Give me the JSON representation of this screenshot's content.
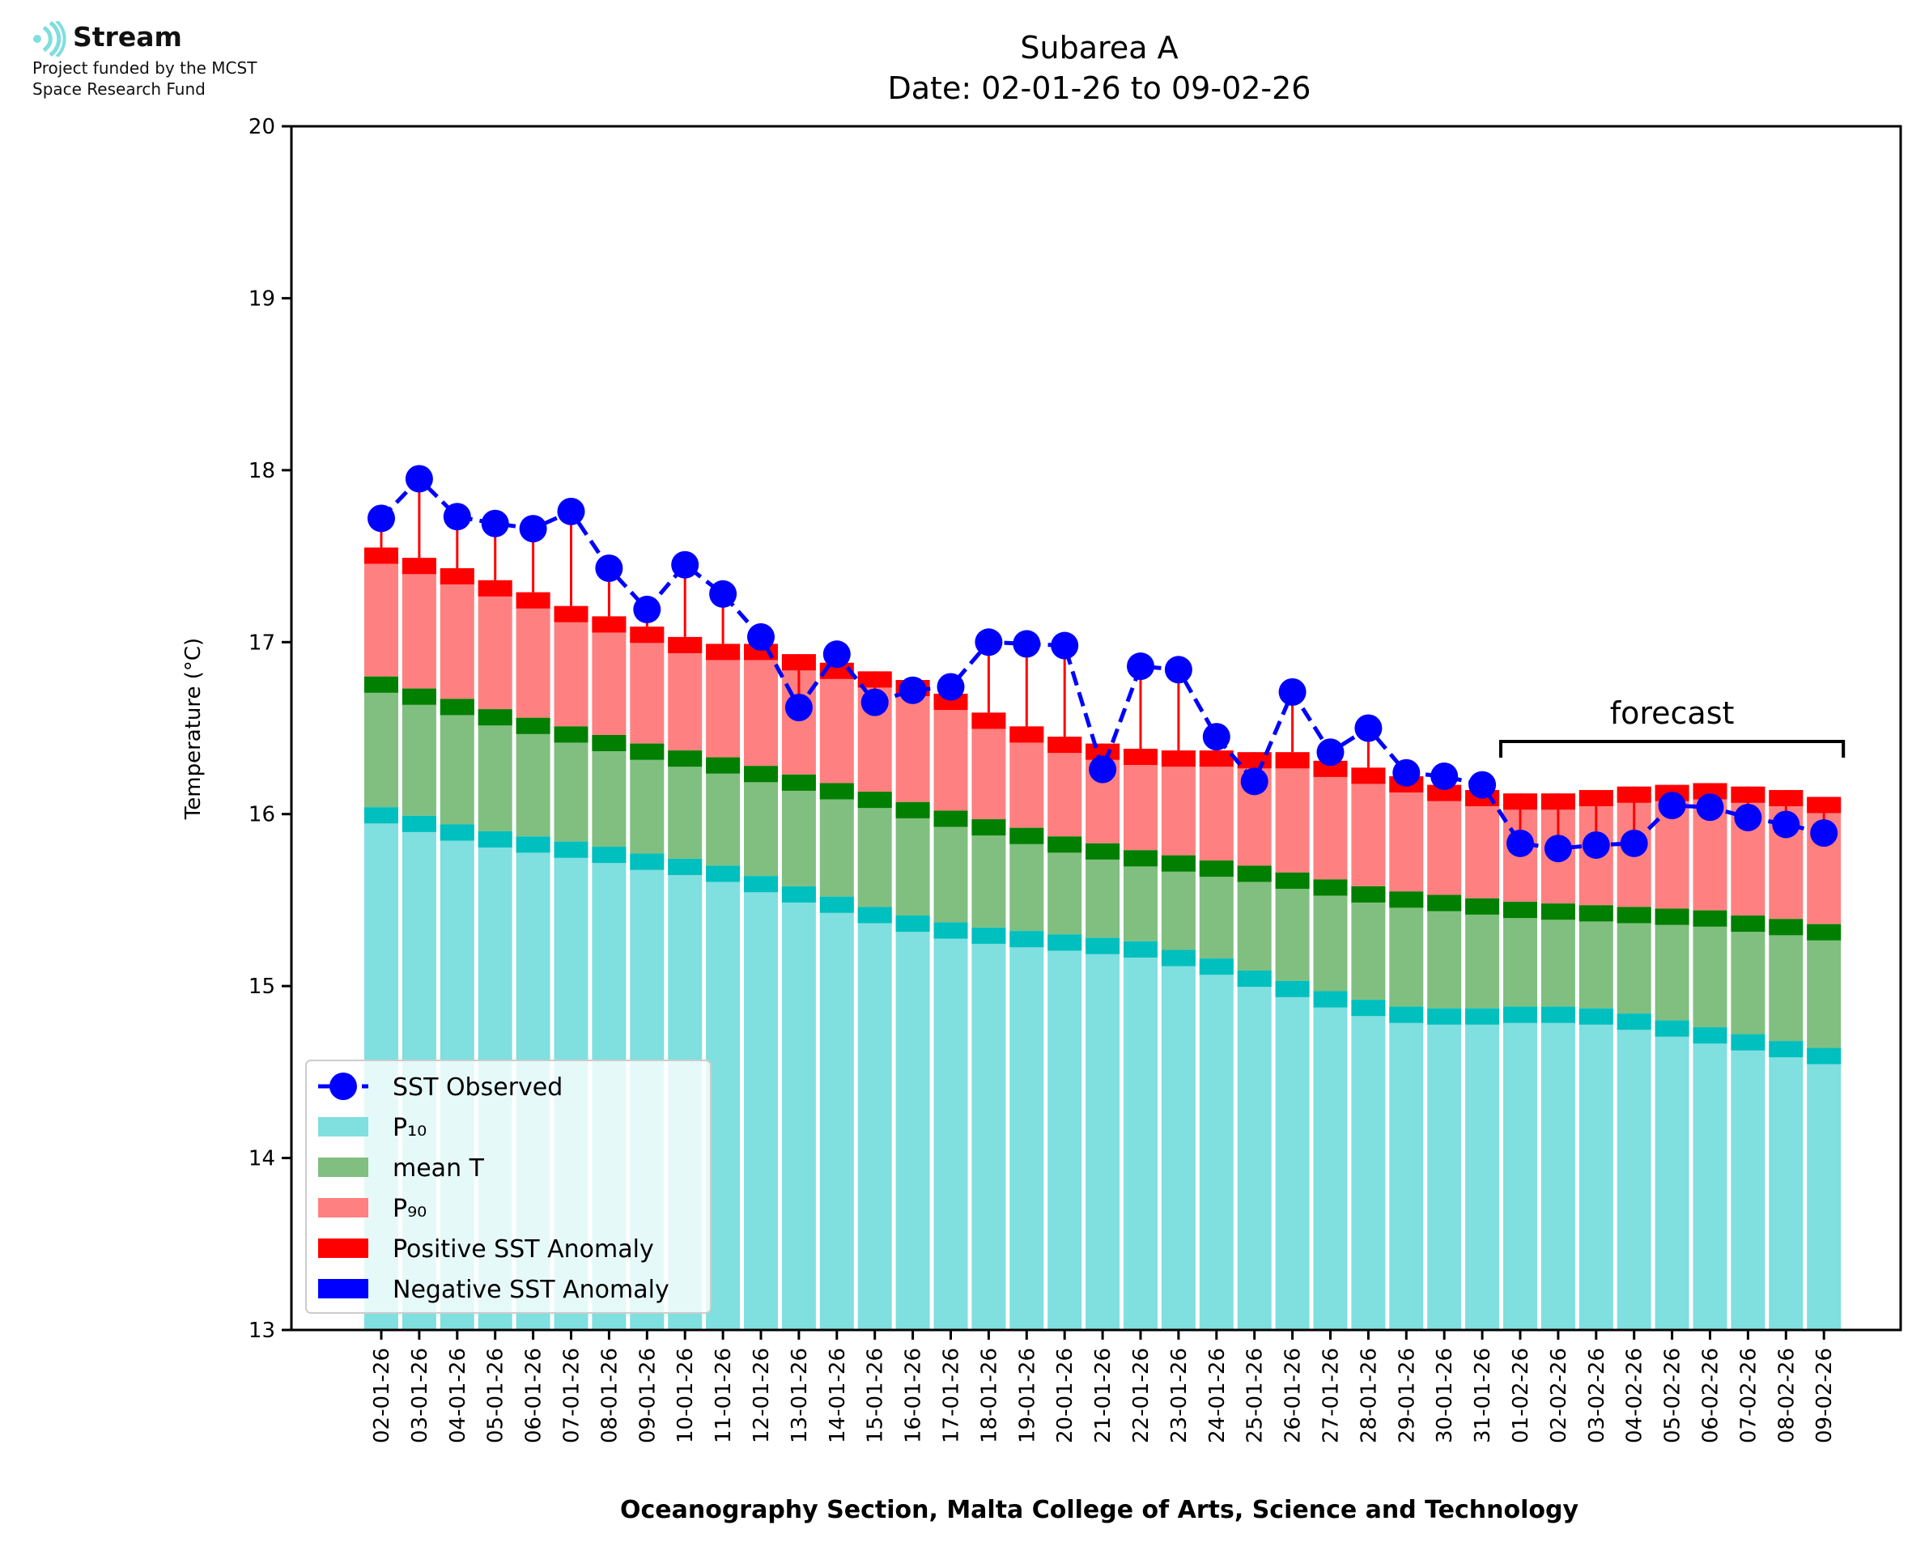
{
  "logo": {
    "icon": "stream-waves-icon",
    "name": "Stream",
    "line1": "Project funded by the MCST",
    "line2": "Space Research Fund",
    "color": "#7fdede"
  },
  "chart_data": {
    "type": "bar",
    "title": "Subarea A",
    "subtitle": "Date: 02-01-26 to 09-02-26",
    "ylabel": "Temperature (°C)",
    "xlabel": "Oceanography Section, Malta College of Arts, Science and Technology",
    "ylim": [
      13,
      20
    ],
    "yticks": [
      13,
      14,
      15,
      16,
      17,
      18,
      19,
      20
    ],
    "grid": false,
    "legend_position": "lower-left",
    "forecast_label": "forecast",
    "forecast_range": [
      "01-02-26",
      "09-02-26"
    ],
    "categories": [
      "02-01-26",
      "03-01-26",
      "04-01-26",
      "05-01-26",
      "06-01-26",
      "07-01-26",
      "08-01-26",
      "09-01-26",
      "10-01-26",
      "11-01-26",
      "12-01-26",
      "13-01-26",
      "14-01-26",
      "15-01-26",
      "16-01-26",
      "17-01-26",
      "18-01-26",
      "19-01-26",
      "20-01-26",
      "21-01-26",
      "22-01-26",
      "23-01-26",
      "24-01-26",
      "25-01-26",
      "26-01-26",
      "27-01-26",
      "28-01-26",
      "29-01-26",
      "30-01-26",
      "31-01-26",
      "01-02-26",
      "02-02-26",
      "03-02-26",
      "04-02-26",
      "05-02-26",
      "06-02-26",
      "07-02-26",
      "08-02-26",
      "09-02-26"
    ],
    "series": [
      {
        "name": "SST Observed",
        "color": "#0000ff",
        "values": [
          17.72,
          17.95,
          17.73,
          17.69,
          17.66,
          17.76,
          17.43,
          17.19,
          17.45,
          17.28,
          17.03,
          16.62,
          16.93,
          16.65,
          16.72,
          16.74,
          17.0,
          16.99,
          16.98,
          16.26,
          16.86,
          16.84,
          16.45,
          16.19,
          16.71,
          16.36,
          16.5,
          16.24,
          16.22,
          16.17,
          15.83,
          15.8,
          15.82,
          15.83,
          16.05,
          16.04,
          15.98,
          15.94,
          15.89
        ]
      },
      {
        "name": "P10",
        "color": "#80dfdf",
        "edge_color": "#00bfbf",
        "values": [
          16.04,
          15.99,
          15.94,
          15.9,
          15.87,
          15.84,
          15.81,
          15.77,
          15.74,
          15.7,
          15.64,
          15.58,
          15.52,
          15.46,
          15.41,
          15.37,
          15.34,
          15.32,
          15.3,
          15.28,
          15.26,
          15.21,
          15.16,
          15.09,
          15.03,
          14.97,
          14.92,
          14.88,
          14.87,
          14.87,
          14.88,
          14.88,
          14.87,
          14.84,
          14.8,
          14.76,
          14.72,
          14.68,
          14.64
        ]
      },
      {
        "name": "mean T",
        "color": "#80bf80",
        "edge_color": "#007f00",
        "values": [
          16.8,
          16.73,
          16.67,
          16.61,
          16.56,
          16.51,
          16.46,
          16.41,
          16.37,
          16.33,
          16.28,
          16.23,
          16.18,
          16.13,
          16.07,
          16.02,
          15.97,
          15.92,
          15.87,
          15.83,
          15.79,
          15.76,
          15.73,
          15.7,
          15.66,
          15.62,
          15.58,
          15.55,
          15.53,
          15.51,
          15.49,
          15.48,
          15.47,
          15.46,
          15.45,
          15.44,
          15.41,
          15.39,
          15.36
        ]
      },
      {
        "name": "P90",
        "color": "#ff8080",
        "edge_color": "#ff0000",
        "values": [
          17.55,
          17.49,
          17.43,
          17.36,
          17.29,
          17.21,
          17.15,
          17.09,
          17.03,
          16.99,
          16.99,
          16.93,
          16.88,
          16.83,
          16.78,
          16.7,
          16.59,
          16.51,
          16.45,
          16.41,
          16.38,
          16.37,
          16.37,
          16.36,
          16.36,
          16.31,
          16.27,
          16.22,
          16.17,
          16.14,
          16.12,
          16.12,
          16.14,
          16.16,
          16.17,
          16.18,
          16.16,
          16.14,
          16.1
        ]
      }
    ],
    "legend": [
      "SST Observed",
      "P₁₀",
      "mean T",
      "P₉₀",
      "Positive SST Anomaly",
      "Negative SST Anomaly"
    ],
    "legend_colors": [
      "#0000ff",
      "#80dfdf",
      "#80bf80",
      "#ff8080",
      "#ff0000",
      "#0000ff"
    ]
  }
}
